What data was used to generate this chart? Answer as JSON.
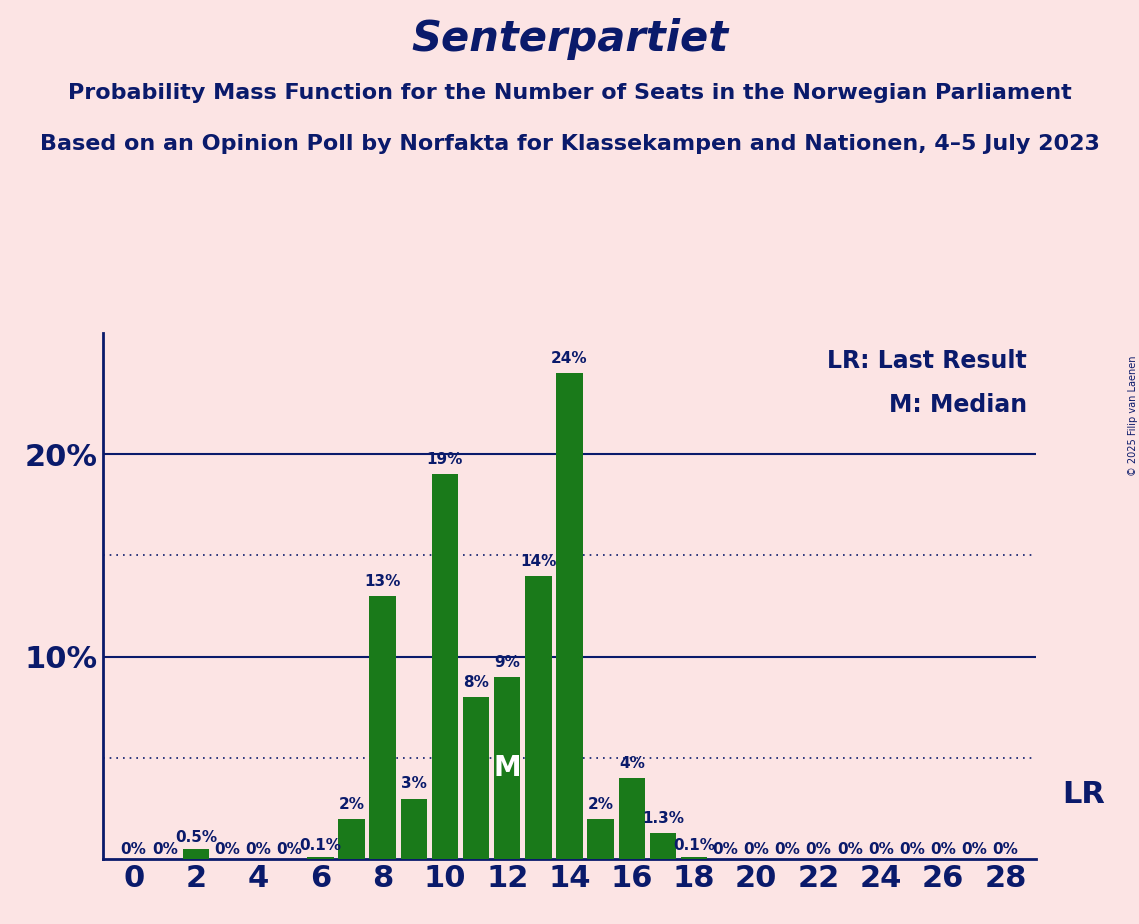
{
  "title": "Senterpartiet",
  "subtitle1": "Probability Mass Function for the Number of Seats in the Norwegian Parliament",
  "subtitle2": "Based on an Opinion Poll by Norfakta for Klassekampen and Nationen, 4–5 July 2023",
  "copyright": "© 2025 Filip van Laenen",
  "legend_lr": "LR: Last Result",
  "legend_m": "M: Median",
  "background_color": "#fce4e4",
  "bar_color": "#1a7a1a",
  "text_color": "#0a1a6b",
  "seats": [
    0,
    1,
    2,
    3,
    4,
    5,
    6,
    7,
    8,
    9,
    10,
    11,
    12,
    13,
    14,
    15,
    16,
    17,
    18,
    19,
    20,
    21,
    22,
    23,
    24,
    25,
    26,
    27,
    28
  ],
  "probabilities": [
    0.0,
    0.0,
    0.5,
    0.0,
    0.0,
    0.0,
    0.1,
    2.0,
    13.0,
    3.0,
    19.0,
    8.0,
    9.0,
    14.0,
    24.0,
    2.0,
    4.0,
    1.3,
    0.1,
    0.0,
    0.0,
    0.0,
    0.0,
    0.0,
    0.0,
    0.0,
    0.0,
    0.0,
    0.0
  ],
  "label_texts": [
    "0%",
    "0%",
    "0.5%",
    "0%",
    "0%",
    "0%",
    "0.1%",
    "2%",
    "13%",
    "3%",
    "19%",
    "8%",
    "9%",
    "14%",
    "24%",
    "2%",
    "4%",
    "1.3%",
    "0.1%",
    "0%",
    "0%",
    "0%",
    "0%",
    "0%",
    "0%",
    "0%",
    "0%",
    "0%",
    "0%"
  ],
  "median_seat": 12,
  "ylim": [
    0,
    26
  ],
  "xtick_start": 0,
  "xtick_end": 28,
  "xtick_step": 2,
  "title_fontsize": 30,
  "subtitle_fontsize": 16,
  "axis_tick_fontsize": 22,
  "bar_label_fontsize": 11,
  "legend_fontsize": 17,
  "ylabel_fontsize": 22,
  "lr_fontsize": 22,
  "m_fontsize": 20
}
